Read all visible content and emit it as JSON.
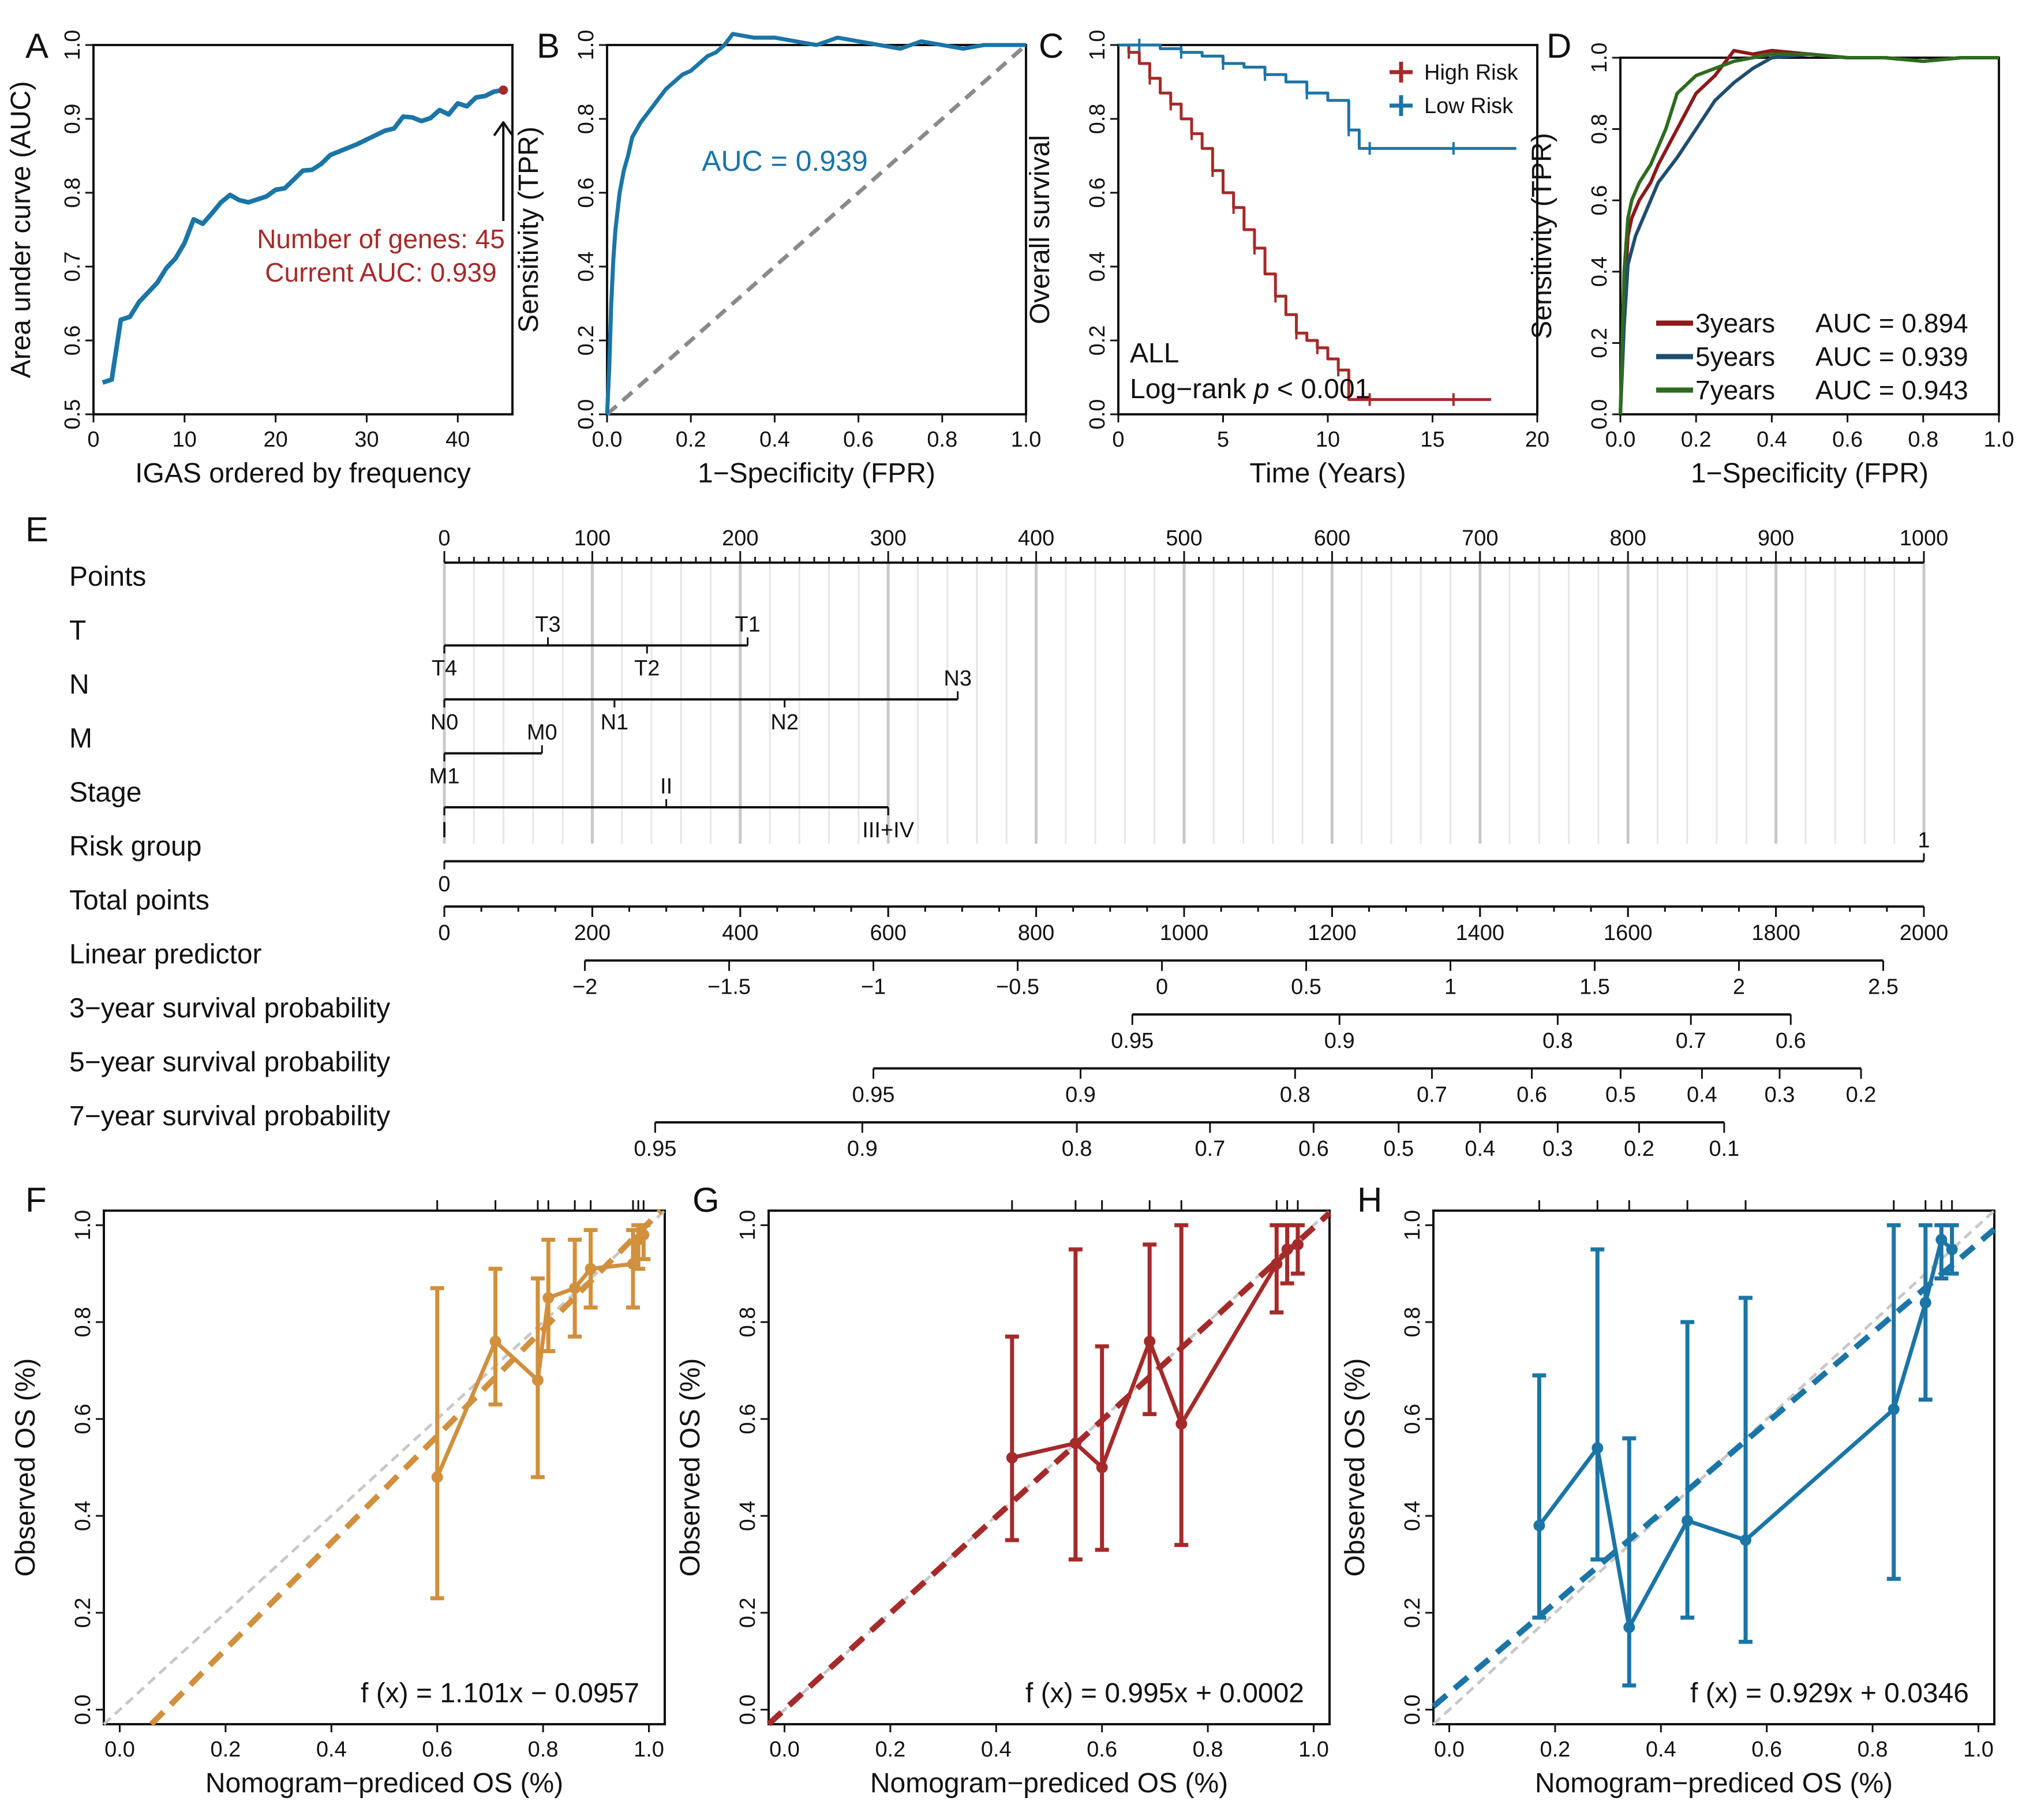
{
  "colors": {
    "blue": "#1b75a6",
    "red": "#a52a2a",
    "darkred": "#8b1a1a",
    "navy": "#1f4e6e",
    "green": "#2e6b1f",
    "orange": "#d0903d",
    "gray": "#8a8a8a",
    "lightgray": "#c8c8c8"
  },
  "chart_data": [
    {
      "panel": "A",
      "type": "line",
      "xlabel": "IGAS ordered by frequency",
      "ylabel": "Area under curve (AUC)",
      "xlim": [
        0,
        46
      ],
      "ylim": [
        0.5,
        1.0
      ],
      "xticks": [
        0,
        10,
        20,
        30,
        40
      ],
      "yticks": [
        0.5,
        0.6,
        0.7,
        0.8,
        0.9,
        1.0
      ],
      "x": [
        1,
        2,
        3,
        4,
        5,
        6,
        7,
        8,
        9,
        10,
        11,
        12,
        13,
        14,
        15,
        16,
        17,
        18,
        19,
        20,
        21,
        22,
        23,
        24,
        25,
        26,
        27,
        28,
        29,
        30,
        31,
        32,
        33,
        34,
        35,
        36,
        37,
        38,
        39,
        40,
        41,
        42,
        43,
        44,
        45
      ],
      "y": [
        0.543,
        0.547,
        0.628,
        0.632,
        0.652,
        0.665,
        0.678,
        0.698,
        0.711,
        0.732,
        0.764,
        0.758,
        0.772,
        0.787,
        0.797,
        0.79,
        0.787,
        0.791,
        0.795,
        0.804,
        0.806,
        0.818,
        0.83,
        0.831,
        0.839,
        0.851,
        0.856,
        0.861,
        0.866,
        0.872,
        0.878,
        0.884,
        0.887,
        0.903,
        0.902,
        0.897,
        0.901,
        0.912,
        0.906,
        0.921,
        0.917,
        0.929,
        0.931,
        0.937,
        0.939
      ],
      "annotation": [
        "Number of genes: 45",
        "Current AUC: 0.939"
      ]
    },
    {
      "panel": "B",
      "type": "line",
      "xlabel": "1−Specificity (FPR)",
      "ylabel": "Sensitivity (TPR)",
      "xlim": [
        0,
        1
      ],
      "ylim": [
        0,
        1
      ],
      "xticks": [
        0.0,
        0.2,
        0.4,
        0.6,
        0.8,
        1.0
      ],
      "yticks": [
        0.0,
        0.2,
        0.4,
        0.6,
        0.8,
        1.0
      ],
      "x": [
        0,
        0.005,
        0.01,
        0.015,
        0.02,
        0.03,
        0.04,
        0.05,
        0.06,
        0.08,
        0.1,
        0.12,
        0.14,
        0.16,
        0.18,
        0.2,
        0.22,
        0.24,
        0.26,
        0.28,
        0.3,
        0.35,
        0.4,
        0.45,
        0.5,
        0.55,
        0.6,
        0.65,
        0.7,
        0.75,
        0.8,
        0.85,
        0.9,
        0.95,
        1.0
      ],
      "y": [
        0,
        0.12,
        0.3,
        0.42,
        0.5,
        0.6,
        0.66,
        0.7,
        0.75,
        0.79,
        0.82,
        0.85,
        0.88,
        0.9,
        0.92,
        0.93,
        0.95,
        0.97,
        0.98,
        1.0,
        1.03,
        1.02,
        1.02,
        1.01,
        1.0,
        1.02,
        1.01,
        1.0,
        0.99,
        1.01,
        1.0,
        0.99,
        1.0,
        1.0,
        1.0
      ],
      "annotation": "AUC = 0.939"
    },
    {
      "panel": "C",
      "type": "line",
      "xlabel": "Time (Years)",
      "ylabel": "Overall survival",
      "xlim": [
        0,
        20
      ],
      "ylim": [
        0,
        1
      ],
      "xticks": [
        0,
        5,
        10,
        15,
        20
      ],
      "yticks": [
        0.0,
        0.2,
        0.4,
        0.6,
        0.8,
        1.0
      ],
      "series": [
        {
          "name": "High Risk",
          "x": [
            0,
            0.5,
            1,
            1.5,
            2,
            2.5,
            3,
            3.5,
            4,
            4.5,
            5,
            5.5,
            6,
            6.5,
            7,
            7.5,
            8,
            8.5,
            9,
            9.5,
            10,
            10.5,
            11,
            12,
            14,
            16,
            17.8
          ],
          "y": [
            1.0,
            0.98,
            0.95,
            0.91,
            0.87,
            0.84,
            0.8,
            0.76,
            0.72,
            0.66,
            0.6,
            0.56,
            0.5,
            0.45,
            0.38,
            0.32,
            0.27,
            0.22,
            0.2,
            0.18,
            0.15,
            0.12,
            0.04,
            0.04,
            0.04,
            0.04,
            0.04
          ]
        },
        {
          "name": "Low Risk",
          "x": [
            0,
            1,
            2,
            3,
            4,
            5,
            6,
            7,
            8,
            9,
            10,
            11,
            11.5,
            12,
            14,
            16,
            19
          ],
          "y": [
            1.0,
            1.0,
            0.99,
            0.98,
            0.97,
            0.95,
            0.94,
            0.92,
            0.9,
            0.87,
            0.85,
            0.77,
            0.72,
            0.72,
            0.72,
            0.72,
            0.72
          ]
        }
      ],
      "annotation": [
        "ALL",
        "Log−rank ",
        "p",
        " < 0.001"
      ]
    },
    {
      "panel": "D",
      "type": "line",
      "xlabel": "1−Specificity (FPR)",
      "ylabel": "Sensitivity (TPR)",
      "xlim": [
        0,
        1
      ],
      "ylim": [
        0,
        1
      ],
      "xticks": [
        0.0,
        0.2,
        0.4,
        0.6,
        0.8,
        1.0
      ],
      "yticks": [
        0.0,
        0.2,
        0.4,
        0.6,
        0.8,
        1.0
      ],
      "series": [
        {
          "name": "3years",
          "auc": "AUC = 0.894",
          "x": [
            0,
            0.01,
            0.02,
            0.03,
            0.05,
            0.08,
            0.1,
            0.15,
            0.2,
            0.25,
            0.3,
            0.35,
            0.4,
            0.5,
            0.6,
            0.7,
            0.8,
            0.9,
            1.0
          ],
          "y": [
            0,
            0.3,
            0.5,
            0.55,
            0.6,
            0.65,
            0.7,
            0.8,
            0.9,
            0.95,
            1.02,
            1.01,
            1.02,
            1.01,
            1.0,
            1.0,
            0.99,
            1.0,
            1.0
          ]
        },
        {
          "name": "5years",
          "auc": "AUC = 0.939",
          "x": [
            0,
            0.01,
            0.02,
            0.04,
            0.06,
            0.08,
            0.1,
            0.15,
            0.2,
            0.25,
            0.3,
            0.35,
            0.4,
            0.5,
            0.6,
            0.7,
            0.8,
            0.9,
            1.0
          ],
          "y": [
            0,
            0.25,
            0.42,
            0.5,
            0.55,
            0.6,
            0.65,
            0.72,
            0.8,
            0.88,
            0.93,
            0.97,
            1.0,
            1.01,
            1.0,
            1.0,
            0.99,
            1.0,
            1.0
          ]
        },
        {
          "name": "7years",
          "auc": "AUC = 0.943",
          "x": [
            0,
            0.01,
            0.02,
            0.03,
            0.05,
            0.08,
            0.1,
            0.12,
            0.15,
            0.2,
            0.25,
            0.3,
            0.4,
            0.5,
            0.6,
            0.7,
            0.8,
            0.9,
            1.0
          ],
          "y": [
            0,
            0.4,
            0.55,
            0.6,
            0.65,
            0.7,
            0.75,
            0.8,
            0.9,
            0.95,
            0.97,
            0.99,
            1.01,
            1.01,
            1.0,
            1.0,
            0.99,
            1.0,
            1.0
          ]
        }
      ]
    },
    {
      "panel": "E",
      "type": "table",
      "rows": [
        {
          "label": "Points",
          "kind": "axis",
          "ticks": [
            "0",
            "100",
            "200",
            "300",
            "400",
            "500",
            "600",
            "700",
            "800",
            "900",
            "1000"
          ]
        },
        {
          "label": "T",
          "kind": "var",
          "line": [
            0,
            205
          ],
          "labels": [
            {
              "text": "T3",
              "p": 70,
              "pos": "above"
            },
            {
              "text": "T1",
              "p": 205,
              "pos": "above"
            },
            {
              "text": "T2",
              "p": 137,
              "pos": "below"
            },
            {
              "text": "T4",
              "p": 0,
              "pos": "below"
            }
          ]
        },
        {
          "label": "N",
          "kind": "var",
          "line": [
            0,
            347
          ],
          "labels": [
            {
              "text": "N1",
              "p": 115,
              "pos": "below"
            },
            {
              "text": "N3",
              "p": 347,
              "pos": "above"
            },
            {
              "text": "N0",
              "p": 0,
              "pos": "below"
            },
            {
              "text": "N2",
              "p": 230,
              "pos": "below"
            }
          ]
        },
        {
          "label": "M",
          "kind": "var",
          "line": [
            0,
            66
          ],
          "labels": [
            {
              "text": "M0",
              "p": 66,
              "pos": "above"
            },
            {
              "text": "M1",
              "p": 0,
              "pos": "below"
            }
          ]
        },
        {
          "label": "Stage",
          "kind": "var",
          "line": [
            0,
            300
          ],
          "labels": [
            {
              "text": "II",
              "p": 150,
              "pos": "above"
            },
            {
              "text": "I",
              "p": 0,
              "pos": "below"
            },
            {
              "text": "III+IV",
              "p": 300,
              "pos": "below"
            }
          ]
        },
        {
          "label": "Risk group",
          "kind": "var",
          "line": [
            0,
            1000
          ],
          "labels": [
            {
              "text": "1",
              "p": 1000,
              "pos": "above"
            },
            {
              "text": "0",
              "p": 0,
              "pos": "below"
            }
          ]
        },
        {
          "label": "Total points",
          "kind": "scale",
          "range": [
            0,
            2000
          ],
          "ticks": [
            "0",
            "200",
            "400",
            "600",
            "800",
            "1000",
            "1200",
            "1400",
            "1600",
            "1800",
            "2000"
          ]
        },
        {
          "label": "Linear predictor",
          "kind": "scale",
          "ticks": [
            {
              "v": "−2",
              "p": 190
            },
            {
              "v": "−1.5",
              "p": 385
            },
            {
              "v": "−1",
              "p": 580
            },
            {
              "v": "−0.5",
              "p": 775
            },
            {
              "v": "0",
              "p": 970
            },
            {
              "v": "0.5",
              "p": 1165
            },
            {
              "v": "1",
              "p": 1360
            },
            {
              "v": "1.5",
              "p": 1555
            },
            {
              "v": "2",
              "p": 1750
            },
            {
              "v": "2.5",
              "p": 1945
            }
          ]
        },
        {
          "label": "3−year survival probability",
          "kind": "scale",
          "ticks": [
            {
              "v": "0.95",
              "p": 930
            },
            {
              "v": "0.9",
              "p": 1210
            },
            {
              "v": "0.8",
              "p": 1505
            },
            {
              "v": "0.7",
              "p": 1685
            },
            {
              "v": "0.6",
              "p": 1820
            }
          ]
        },
        {
          "label": "5−year survival probability",
          "kind": "scale",
          "ticks": [
            {
              "v": "0.95",
              "p": 580
            },
            {
              "v": "0.9",
              "p": 860
            },
            {
              "v": "0.8",
              "p": 1150
            },
            {
              "v": "0.7",
              "p": 1335
            },
            {
              "v": "0.6",
              "p": 1470
            },
            {
              "v": "0.5",
              "p": 1590
            },
            {
              "v": "0.4",
              "p": 1700
            },
            {
              "v": "0.3",
              "p": 1805
            },
            {
              "v": "0.2",
              "p": 1915
            }
          ]
        },
        {
          "label": "7−year survival probability",
          "kind": "scale",
          "ticks": [
            {
              "v": "0.95",
              "p": 285
            },
            {
              "v": "0.9",
              "p": 565
            },
            {
              "v": "0.8",
              "p": 855
            },
            {
              "v": "0.7",
              "p": 1035
            },
            {
              "v": "0.6",
              "p": 1175
            },
            {
              "v": "0.5",
              "p": 1290
            },
            {
              "v": "0.4",
              "p": 1400
            },
            {
              "v": "0.3",
              "p": 1505
            },
            {
              "v": "0.2",
              "p": 1615
            },
            {
              "v": "0.1",
              "p": 1730
            }
          ]
        }
      ]
    },
    {
      "panel": "F",
      "type": "line",
      "xlabel": "Nomogram−prediced OS (%)",
      "ylabel": "Observed OS (%)",
      "xlim": [
        -0.03,
        1.03
      ],
      "ylim": [
        -0.03,
        1.03
      ],
      "xticks": [
        0.0,
        0.2,
        0.4,
        0.6,
        0.8,
        1.0
      ],
      "yticks": [
        0.0,
        0.2,
        0.4,
        0.6,
        0.8,
        1.0
      ],
      "points": [
        {
          "x": 0.6,
          "y": 0.48,
          "lo": 0.23,
          "hi": 0.87
        },
        {
          "x": 0.71,
          "y": 0.76,
          "lo": 0.63,
          "hi": 0.91
        },
        {
          "x": 0.79,
          "y": 0.68,
          "lo": 0.48,
          "hi": 0.89
        },
        {
          "x": 0.81,
          "y": 0.85,
          "lo": 0.74,
          "hi": 0.97
        },
        {
          "x": 0.86,
          "y": 0.87,
          "lo": 0.77,
          "hi": 0.97
        },
        {
          "x": 0.89,
          "y": 0.91,
          "lo": 0.83,
          "hi": 0.99
        },
        {
          "x": 0.97,
          "y": 0.92,
          "lo": 0.83,
          "hi": 0.99
        },
        {
          "x": 0.98,
          "y": 0.97,
          "lo": 0.91,
          "hi": 1.0
        },
        {
          "x": 0.99,
          "y": 0.98,
          "lo": 0.93,
          "hi": 1.0
        }
      ],
      "fit": {
        "slope": 1.101,
        "intercept": -0.0957
      },
      "equation": "f (x) = 1.101x − 0.0957"
    },
    {
      "panel": "G",
      "type": "line",
      "xlabel": "Nomogram−prediced OS (%)",
      "ylabel": "Observed OS (%)",
      "xlim": [
        -0.03,
        1.03
      ],
      "ylim": [
        -0.03,
        1.03
      ],
      "xticks": [
        0.0,
        0.2,
        0.4,
        0.6,
        0.8,
        1.0
      ],
      "yticks": [
        0.0,
        0.2,
        0.4,
        0.6,
        0.8,
        1.0
      ],
      "points": [
        {
          "x": 0.43,
          "y": 0.52,
          "lo": 0.35,
          "hi": 0.77
        },
        {
          "x": 0.55,
          "y": 0.55,
          "lo": 0.31,
          "hi": 0.95
        },
        {
          "x": 0.6,
          "y": 0.5,
          "lo": 0.33,
          "hi": 0.75
        },
        {
          "x": 0.69,
          "y": 0.76,
          "lo": 0.61,
          "hi": 0.96
        },
        {
          "x": 0.75,
          "y": 0.59,
          "lo": 0.34,
          "hi": 1.0
        },
        {
          "x": 0.93,
          "y": 0.92,
          "lo": 0.82,
          "hi": 1.0
        },
        {
          "x": 0.95,
          "y": 0.95,
          "lo": 0.88,
          "hi": 1.0
        },
        {
          "x": 0.97,
          "y": 0.96,
          "lo": 0.9,
          "hi": 1.0
        }
      ],
      "fit": {
        "slope": 0.995,
        "intercept": 0.0002
      },
      "equation": "f (x) = 0.995x + 0.0002"
    },
    {
      "panel": "H",
      "type": "line",
      "xlabel": "Nomogram−prediced OS (%)",
      "ylabel": "Observed OS (%)",
      "xlim": [
        -0.03,
        1.03
      ],
      "ylim": [
        -0.03,
        1.03
      ],
      "xticks": [
        0.0,
        0.2,
        0.4,
        0.6,
        0.8,
        1.0
      ],
      "yticks": [
        0.0,
        0.2,
        0.4,
        0.6,
        0.8,
        1.0
      ],
      "points": [
        {
          "x": 0.17,
          "y": 0.38,
          "lo": 0.19,
          "hi": 0.69
        },
        {
          "x": 0.28,
          "y": 0.54,
          "lo": 0.31,
          "hi": 0.95
        },
        {
          "x": 0.34,
          "y": 0.17,
          "lo": 0.05,
          "hi": 0.56
        },
        {
          "x": 0.45,
          "y": 0.39,
          "lo": 0.19,
          "hi": 0.8
        },
        {
          "x": 0.56,
          "y": 0.35,
          "lo": 0.14,
          "hi": 0.85
        },
        {
          "x": 0.84,
          "y": 0.62,
          "lo": 0.27,
          "hi": 1.0
        },
        {
          "x": 0.9,
          "y": 0.84,
          "lo": 0.64,
          "hi": 1.0
        },
        {
          "x": 0.93,
          "y": 0.97,
          "lo": 0.89,
          "hi": 1.0
        },
        {
          "x": 0.95,
          "y": 0.95,
          "lo": 0.9,
          "hi": 1.0
        }
      ],
      "fit": {
        "slope": 0.929,
        "intercept": 0.0346
      },
      "equation": "f (x) = 0.929x + 0.0346"
    }
  ]
}
